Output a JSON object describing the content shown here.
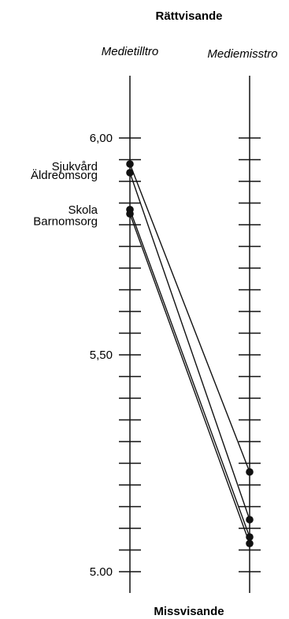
{
  "chart_data": {
    "type": "line",
    "title_top": "Rättvisande",
    "title_bottom": "Missvisande",
    "x": [
      "Medietilltro",
      "Mediemisstro"
    ],
    "ylim": [
      5.0,
      6.15
    ],
    "y_ticks": [
      5.0,
      5.05,
      5.1,
      5.15,
      5.2,
      5.25,
      5.3,
      5.35,
      5.4,
      5.45,
      5.5,
      5.55,
      5.6,
      5.65,
      5.7,
      5.75,
      5.8,
      5.85,
      5.9,
      5.95,
      6.0
    ],
    "y_tick_labels": [
      {
        "value": 6.0,
        "text": "6,00"
      },
      {
        "value": 5.5,
        "text": "5,50"
      },
      {
        "value": 5.0,
        "text": "5.00"
      }
    ],
    "series": [
      {
        "name": "Sjukvård",
        "values": [
          5.94,
          5.23
        ]
      },
      {
        "name": "Äldreomsorg",
        "values": [
          5.92,
          5.12
        ]
      },
      {
        "name": "Skola",
        "values": [
          5.835,
          5.08
        ]
      },
      {
        "name": "Barnomsorg",
        "values": [
          5.825,
          5.065
        ]
      }
    ]
  }
}
